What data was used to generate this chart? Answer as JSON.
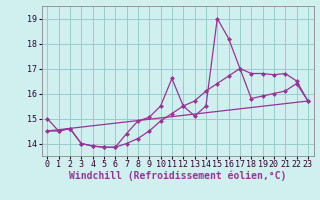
{
  "xlabel": "Windchill (Refroidissement éolien,°C)",
  "bg_color": "#cff0ee",
  "grid_color": "#99cccc",
  "line_color": "#993399",
  "xlim": [
    -0.5,
    23.5
  ],
  "ylim": [
    13.5,
    19.5
  ],
  "yticks": [
    14,
    15,
    16,
    17,
    18,
    19
  ],
  "xticks": [
    0,
    1,
    2,
    3,
    4,
    5,
    6,
    7,
    8,
    9,
    10,
    11,
    12,
    13,
    14,
    15,
    16,
    17,
    18,
    19,
    20,
    21,
    22,
    23
  ],
  "series1_x": [
    0,
    1,
    2,
    3,
    4,
    5,
    6,
    7,
    8,
    9,
    10,
    11,
    12,
    13,
    14,
    15,
    16,
    17,
    18,
    19,
    20,
    21,
    22,
    23
  ],
  "series1_y": [
    15.0,
    14.5,
    14.6,
    14.0,
    13.9,
    13.85,
    13.85,
    14.4,
    14.9,
    15.05,
    15.5,
    16.6,
    15.5,
    15.1,
    15.5,
    19.0,
    18.2,
    17.0,
    16.8,
    16.8,
    16.75,
    16.8,
    16.5,
    15.7
  ],
  "series2_x": [
    0,
    23
  ],
  "series2_y": [
    14.5,
    15.7
  ],
  "series3_x": [
    0,
    1,
    2,
    3,
    4,
    5,
    6,
    7,
    8,
    9,
    10,
    11,
    12,
    13,
    14,
    15,
    16,
    17,
    18,
    19,
    20,
    21,
    22,
    23
  ],
  "series3_y": [
    14.5,
    14.5,
    14.6,
    14.0,
    13.9,
    13.85,
    13.85,
    14.0,
    14.2,
    14.5,
    14.9,
    15.2,
    15.5,
    15.7,
    16.1,
    16.4,
    16.7,
    17.0,
    15.8,
    15.9,
    16.0,
    16.1,
    16.4,
    15.7
  ],
  "xlabel_fontsize": 7,
  "tick_fontsize": 6
}
